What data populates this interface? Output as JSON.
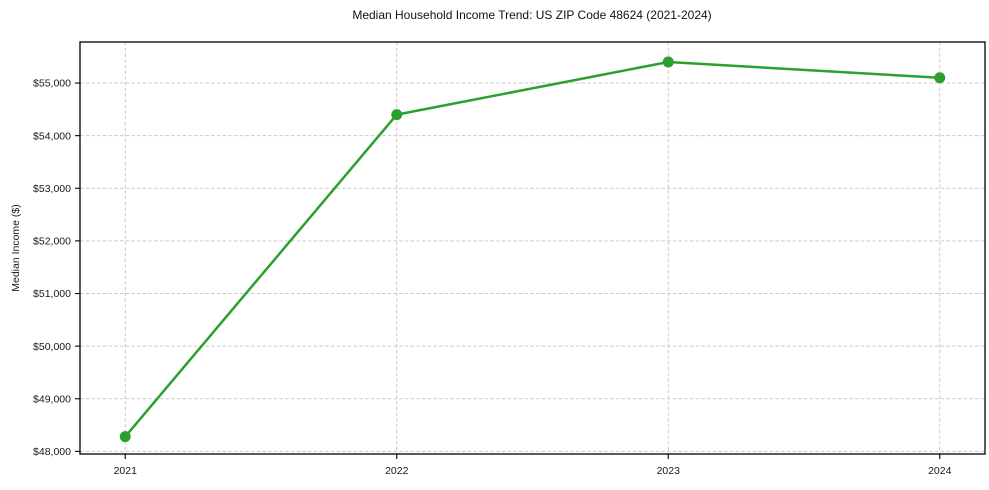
{
  "chart_data": {
    "type": "line",
    "title": "Median Household Income Trend: US ZIP Code 48624 (2021-2024)",
    "xlabel": "",
    "ylabel": "Median Income ($)",
    "categories": [
      "2021",
      "2022",
      "2023",
      "2024"
    ],
    "values": [
      48280,
      54400,
      55400,
      55100
    ],
    "y_tick_values": [
      48000,
      49000,
      50000,
      51000,
      52000,
      53000,
      54000,
      55000
    ],
    "y_tick_labels": [
      "$48,000",
      "$49,000",
      "$50,000",
      "$51,000",
      "$52,000",
      "$53,000",
      "$54,000",
      "$55,000"
    ],
    "ylim": [
      47950,
      55780
    ],
    "grid": {
      "visible": true,
      "style": "dashed",
      "which": "both"
    },
    "legend_position": "none",
    "marker": "circle",
    "colors": {
      "line": "#2ca02c",
      "marker": "#2ca02c",
      "grid": "#c9c9c9",
      "spine": "#000000",
      "text": "#191919",
      "background": "#ffffff"
    }
  }
}
